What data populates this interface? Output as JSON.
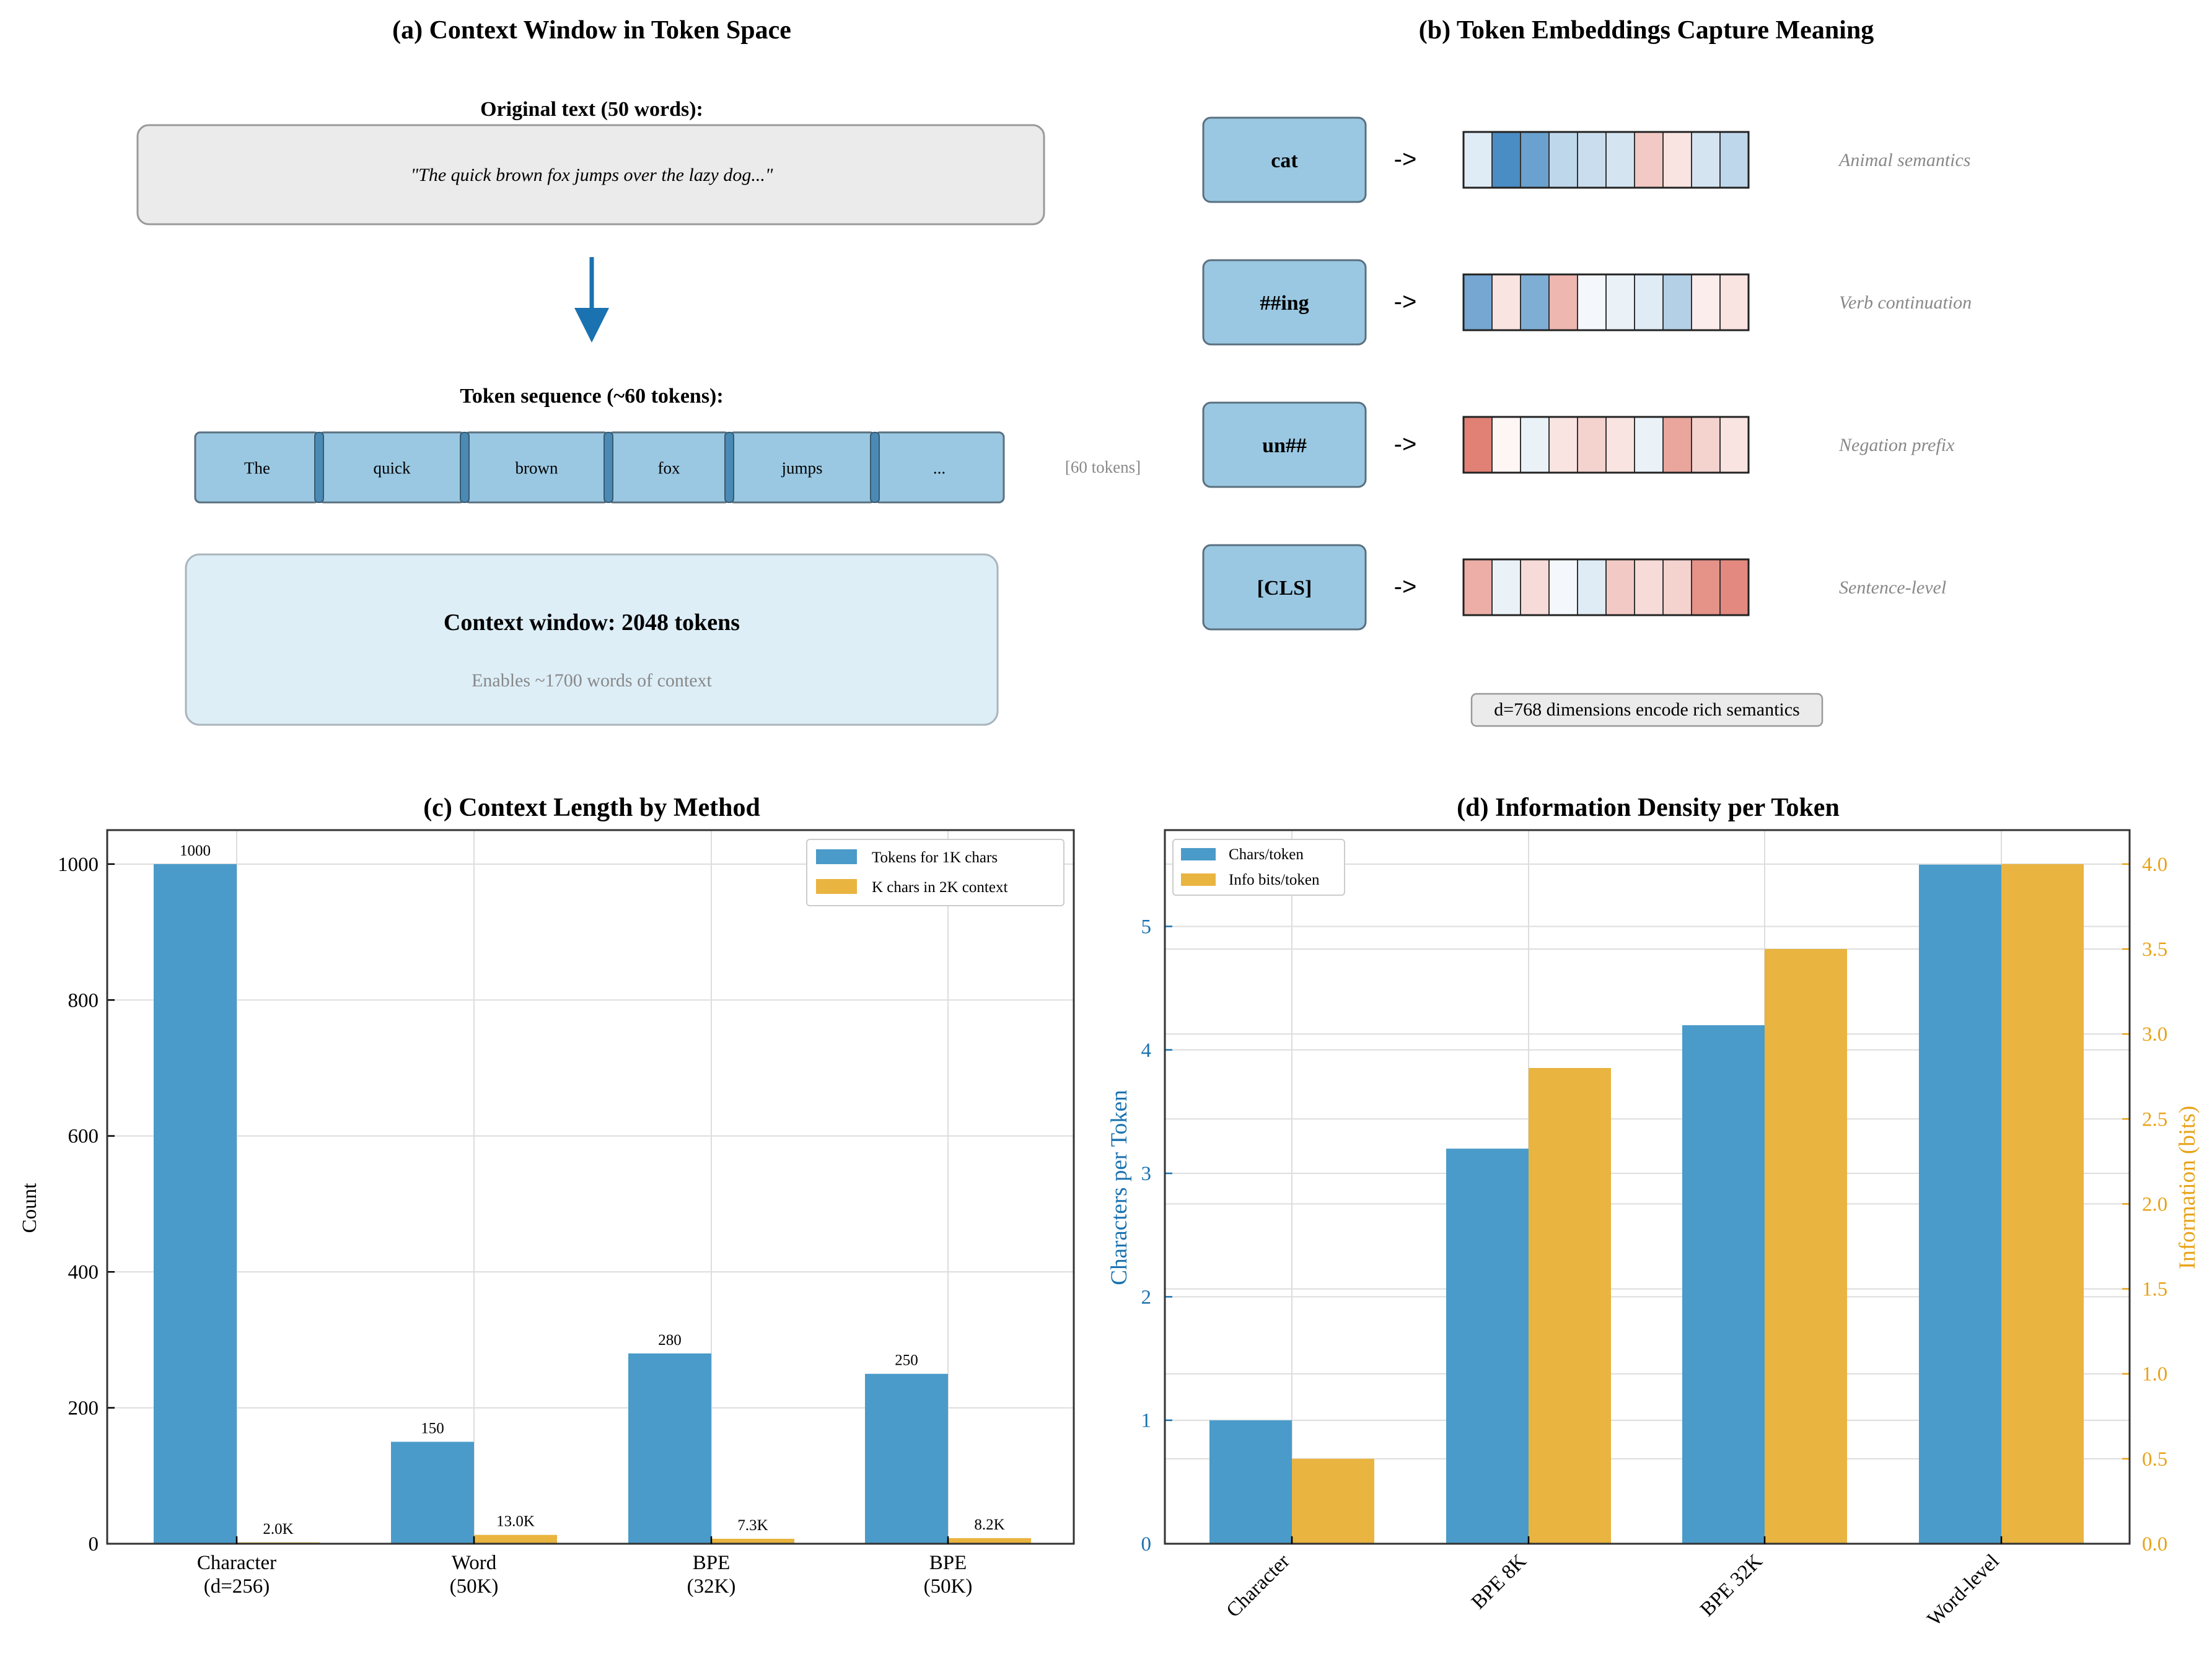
{
  "colors": {
    "blue": "#4a9bc9",
    "orange": "#e9b440",
    "blue_axis": "#1a72b0",
    "orange_axis": "#e8a318",
    "token_fill": "#9ac8e2",
    "panel_gray": "#ebebeb",
    "context_box": "#ddeef7"
  },
  "panel_a": {
    "title": "(a) Context Window in Token Space",
    "original_label": "Original text (50 words):",
    "original_text": "\"The quick brown fox jumps over the lazy dog...\"",
    "token_label": "Token sequence (~60 tokens):",
    "tokens": [
      "The",
      "quick",
      "brown",
      "fox",
      "jumps",
      "..."
    ],
    "token_count_note": "[60 tokens]",
    "context_title": "Context window: 2048 tokens",
    "context_subtitle": "Enables ~1700 words of context"
  },
  "panel_b": {
    "title": "(b) Token Embeddings Capture Meaning",
    "arrow_text": "->",
    "rows": [
      {
        "token": "cat",
        "description": "Animal semantics",
        "values": [
          0.15,
          0.85,
          0.7,
          0.3,
          0.25,
          0.2,
          -0.3,
          -0.15,
          0.2,
          0.3
        ]
      },
      {
        "token": "##ing",
        "description": "Verb continuation",
        "values": [
          0.65,
          -0.15,
          0.6,
          -0.4,
          0.05,
          0.1,
          0.15,
          0.35,
          -0.1,
          -0.15
        ]
      },
      {
        "token": "un##",
        "description": "Negation prefix",
        "values": [
          -0.7,
          -0.05,
          0.1,
          -0.15,
          -0.25,
          -0.15,
          0.1,
          -0.5,
          -0.25,
          -0.15
        ]
      },
      {
        "token": "[CLS]",
        "description": "Sentence-level",
        "values": [
          -0.45,
          0.1,
          -0.2,
          0.05,
          0.15,
          -0.3,
          -0.2,
          -0.25,
          -0.6,
          -0.65
        ]
      }
    ],
    "footnote": "d=768 dimensions encode rich semantics"
  },
  "chart_data": [
    {
      "type": "bar",
      "title": "(c) Context Length by Method",
      "categories": [
        "Character\n(d=256)",
        "Word\n(50K)",
        "BPE\n(32K)",
        "BPE\n(50K)"
      ],
      "series": [
        {
          "name": "Tokens for 1K chars",
          "values": [
            1000,
            150,
            280,
            250
          ],
          "labels": [
            "1000",
            "150",
            "280",
            "250"
          ]
        },
        {
          "name": "K chars in 2K context",
          "values": [
            2.0,
            13.0,
            7.3,
            8.2
          ],
          "labels": [
            "2.0K",
            "13.0K",
            "7.3K",
            "8.2K"
          ]
        }
      ],
      "xlabel": "",
      "ylabel": "Count",
      "ylim": [
        0,
        1050
      ],
      "yticks": [
        0,
        200,
        400,
        600,
        800,
        1000
      ],
      "grid": true,
      "legend": "top-right"
    },
    {
      "type": "bar",
      "title": "(d) Information Density per Token",
      "categories": [
        "Character",
        "BPE 8K",
        "BPE 32K",
        "Word-level"
      ],
      "series": [
        {
          "name": "Chars/token",
          "axis": "left",
          "values": [
            1.0,
            3.2,
            4.2,
            5.5
          ]
        },
        {
          "name": "Info bits/token",
          "axis": "right",
          "values": [
            0.5,
            2.8,
            3.5,
            4.0
          ]
        }
      ],
      "ylabel": "Characters per Token",
      "ylabel_right": "Information (bits)",
      "ylim": [
        0,
        5.78
      ],
      "ylim_right": [
        0,
        4.2
      ],
      "yticks": [
        0,
        1,
        2,
        3,
        4,
        5
      ],
      "yticks_right": [
        0.0,
        0.5,
        1.0,
        1.5,
        2.0,
        2.5,
        3.0,
        3.5,
        4.0
      ],
      "grid": true,
      "legend": "top-left"
    }
  ]
}
